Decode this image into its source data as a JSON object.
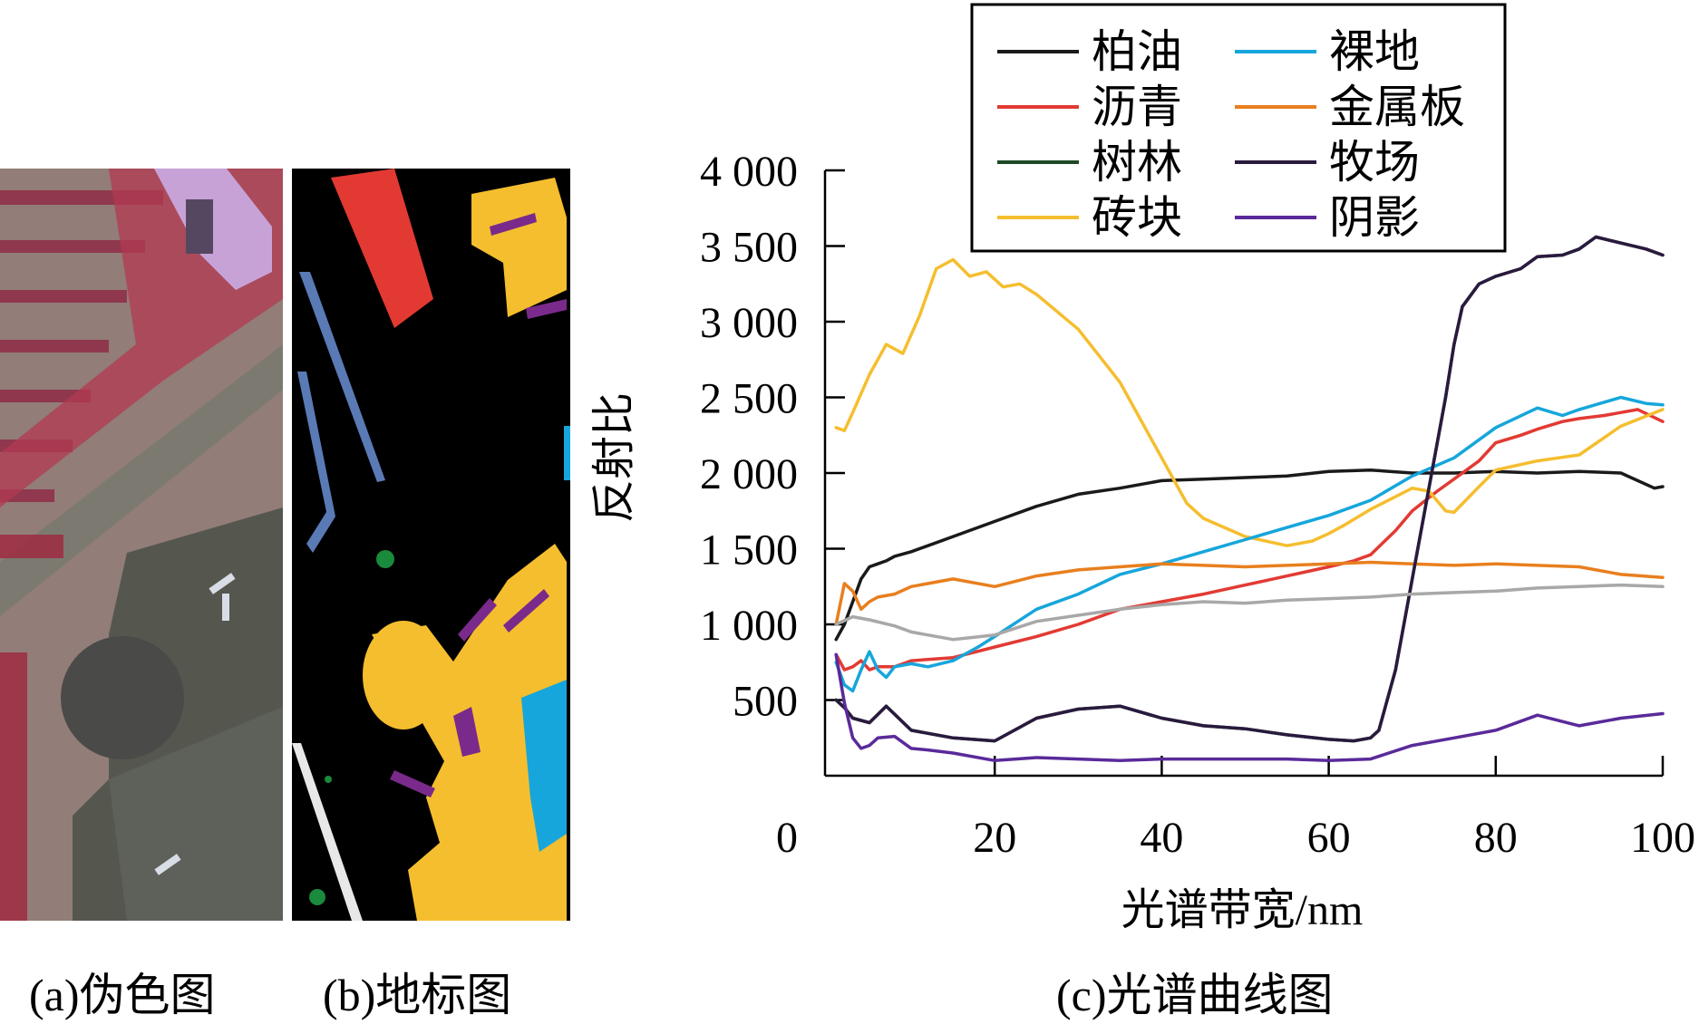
{
  "captions": {
    "a": "(a)伪色图",
    "b": "(b)地标图",
    "c": "(c)光谱曲线图"
  },
  "panel_a": {
    "content": "false-color aerial image of a parking area, roads and a circular building",
    "colors": {
      "ground": "#8e7c76",
      "vegetation": "#b23a52",
      "road": "#7c7a70",
      "building": "#55574f",
      "roof": "#c7a2d6"
    }
  },
  "panel_b": {
    "content": "ground-truth land cover map",
    "colors": {
      "background": "#000000",
      "bare_soil": "#16a6db",
      "asphalt": "#e23a33",
      "trees": "#1a8a3c",
      "bricks": "#f5be2e",
      "metal": "#e87f1e",
      "shadow": "#7a2a8a",
      "bitumen": "#5a7ab5",
      "meadow": "#e8e8e8"
    }
  },
  "chart_data": {
    "type": "line",
    "title": "",
    "xlabel": "光谱带宽/nm",
    "ylabel": "反射比",
    "xlim": [
      0,
      100
    ],
    "ylim": [
      0,
      4000
    ],
    "xticks": [
      0,
      20,
      40,
      60,
      80,
      100
    ],
    "yticks": [
      500,
      1000,
      1500,
      2000,
      2500,
      3000,
      3500,
      4000
    ],
    "xtick_labels": [
      "0",
      "20",
      "40",
      "60",
      "80",
      "100"
    ],
    "ytick_labels": [
      "500",
      "1 000",
      "1 500",
      "2 000",
      "2 500",
      "3 000",
      "3 500",
      "4 000"
    ],
    "grid": false,
    "legend_position": "top-right",
    "legend_columns": 2,
    "series": [
      {
        "name": "柏油",
        "color": "#1a1a1a",
        "x": [
          1,
          2,
          3,
          4,
          5,
          6,
          7,
          8,
          10,
          12,
          15,
          20,
          25,
          30,
          35,
          40,
          45,
          50,
          55,
          60,
          65,
          70,
          75,
          80,
          85,
          90,
          95,
          99,
          100
        ],
        "y": [
          900,
          1000,
          1150,
          1300,
          1380,
          1400,
          1420,
          1450,
          1480,
          1520,
          1580,
          1680,
          1780,
          1860,
          1900,
          1950,
          1960,
          1970,
          1980,
          2010,
          2020,
          2000,
          2000,
          2010,
          2000,
          2010,
          2000,
          1900,
          1910
        ]
      },
      {
        "name": "沥青",
        "color": "#e23a33",
        "x": [
          1,
          2,
          3,
          4,
          5,
          6,
          8,
          10,
          15,
          20,
          25,
          30,
          35,
          40,
          45,
          50,
          55,
          60,
          63,
          65,
          68,
          70,
          73,
          75,
          78,
          80,
          83,
          85,
          88,
          90,
          93,
          95,
          97,
          100
        ],
        "y": [
          800,
          700,
          720,
          760,
          700,
          720,
          720,
          760,
          780,
          850,
          920,
          1000,
          1100,
          1150,
          1200,
          1260,
          1320,
          1380,
          1420,
          1460,
          1620,
          1750,
          1880,
          1960,
          2080,
          2200,
          2250,
          2290,
          2340,
          2360,
          2380,
          2400,
          2420,
          2340
        ]
      },
      {
        "name": "树林",
        "color": "#1e4a26",
        "x": [
          1,
          2,
          3,
          5,
          7,
          10,
          15,
          20,
          25,
          30,
          35,
          40,
          45,
          50,
          55,
          60,
          63,
          65,
          66,
          68,
          70,
          72,
          74,
          75,
          76,
          78,
          80,
          83,
          85,
          88,
          90,
          92,
          95,
          98,
          100
        ],
        "y": [
          500,
          450,
          380,
          350,
          460,
          300,
          250,
          230,
          380,
          440,
          460,
          380,
          330,
          310,
          270,
          240,
          230,
          250,
          300,
          700,
          1300,
          1900,
          2500,
          2850,
          3100,
          3250,
          3300,
          3350,
          3430,
          3440,
          3480,
          3560,
          3520,
          3480,
          3440
        ]
      },
      {
        "name": "砖块",
        "color": "#f5be2e",
        "x": [
          1,
          2,
          3,
          5,
          7,
          9,
          11,
          13,
          15,
          17,
          19,
          21,
          23,
          25,
          30,
          35,
          40,
          43,
          45,
          50,
          55,
          58,
          60,
          62,
          65,
          70,
          72,
          74,
          75,
          78,
          80,
          85,
          90,
          95,
          100
        ],
        "y": [
          2300,
          2280,
          2400,
          2650,
          2850,
          2790,
          3040,
          3350,
          3410,
          3300,
          3330,
          3230,
          3250,
          3180,
          2950,
          2600,
          2100,
          1800,
          1700,
          1580,
          1520,
          1550,
          1600,
          1660,
          1760,
          1900,
          1880,
          1750,
          1740,
          1910,
          2020,
          2080,
          2120,
          2310,
          2420
        ]
      },
      {
        "name": "裸地",
        "color": "#16a6db",
        "x": [
          1,
          2,
          3,
          4,
          5,
          6,
          7,
          8,
          10,
          12,
          15,
          18,
          20,
          25,
          30,
          35,
          40,
          45,
          50,
          55,
          60,
          65,
          70,
          75,
          80,
          85,
          88,
          90,
          95,
          98,
          100
        ],
        "y": [
          750,
          600,
          560,
          700,
          820,
          700,
          650,
          720,
          740,
          720,
          760,
          850,
          920,
          1100,
          1200,
          1330,
          1400,
          1480,
          1560,
          1640,
          1720,
          1820,
          1980,
          2100,
          2300,
          2430,
          2380,
          2420,
          2500,
          2460,
          2450
        ]
      },
      {
        "name": "金属板",
        "color": "#e87f1e",
        "x": [
          1,
          2,
          3,
          4,
          5,
          6,
          8,
          10,
          15,
          20,
          25,
          30,
          35,
          40,
          45,
          50,
          55,
          60,
          65,
          70,
          75,
          80,
          85,
          90,
          95,
          100
        ],
        "y": [
          1000,
          1270,
          1220,
          1100,
          1150,
          1180,
          1200,
          1250,
          1300,
          1250,
          1320,
          1360,
          1380,
          1400,
          1390,
          1380,
          1390,
          1400,
          1410,
          1400,
          1390,
          1400,
          1390,
          1380,
          1330,
          1310
        ]
      },
      {
        "name": "牧场",
        "color": "#2a1a3e",
        "x": [
          1,
          2,
          3,
          5,
          7,
          10,
          15,
          20,
          25,
          30,
          35,
          40,
          45,
          50,
          55,
          60,
          63,
          65,
          66,
          68,
          70,
          72,
          74,
          75,
          76,
          78,
          80,
          83,
          85,
          88,
          90,
          92,
          95,
          98,
          100
        ],
        "y": [
          500,
          450,
          380,
          350,
          460,
          300,
          250,
          230,
          380,
          440,
          460,
          380,
          330,
          310,
          270,
          240,
          230,
          250,
          300,
          700,
          1300,
          1900,
          2500,
          2850,
          3100,
          3250,
          3300,
          3350,
          3430,
          3440,
          3480,
          3560,
          3520,
          3480,
          3440
        ]
      },
      {
        "name": "阴影",
        "color": "#5a2a9a",
        "x": [
          1,
          2,
          3,
          4,
          5,
          6,
          8,
          10,
          12,
          15,
          20,
          25,
          30,
          35,
          40,
          45,
          50,
          55,
          60,
          65,
          70,
          75,
          80,
          85,
          90,
          95,
          100
        ],
        "y": [
          800,
          480,
          250,
          180,
          200,
          250,
          260,
          180,
          170,
          150,
          100,
          120,
          110,
          100,
          110,
          110,
          110,
          110,
          100,
          110,
          200,
          250,
          300,
          400,
          330,
          380,
          410
        ]
      },
      {
        "name": "",
        "color": "#a8a8a8",
        "x": [
          1,
          3,
          5,
          8,
          10,
          15,
          20,
          25,
          30,
          35,
          40,
          45,
          50,
          55,
          60,
          65,
          70,
          75,
          80,
          85,
          90,
          95,
          100
        ],
        "y": [
          1000,
          1050,
          1030,
          990,
          950,
          900,
          930,
          1020,
          1060,
          1100,
          1130,
          1150,
          1140,
          1160,
          1170,
          1180,
          1200,
          1210,
          1220,
          1240,
          1250,
          1260,
          1250
        ]
      }
    ]
  }
}
